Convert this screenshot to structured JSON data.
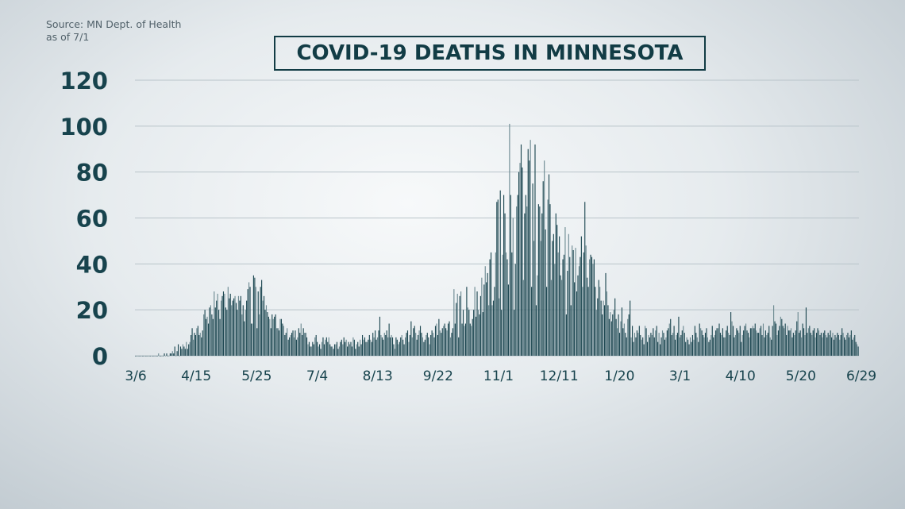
{
  "source": {
    "line1": "Source: MN Dept. of Health",
    "line2": "as of 7/1"
  },
  "colors": {
    "bar_dark": "#1e4852",
    "bar_light": "#6d8a92",
    "grid": "#b9c4ca",
    "text": "#17434d"
  },
  "chart_data": {
    "type": "bar",
    "title": "COVID-19 DEATHS IN MINNESOTA",
    "xlabel": "",
    "ylabel": "",
    "ylim": [
      0,
      120
    ],
    "y_ticks": [
      "0",
      "20",
      "40",
      "60",
      "80",
      "100",
      "120"
    ],
    "x_ticks": [
      "3/6",
      "4/15",
      "5/25",
      "7/4",
      "8/13",
      "9/22",
      "11/1",
      "12/11",
      "1/20",
      "3/1",
      "4/10",
      "5/20",
      "6/29"
    ],
    "x_start": "3/6/2020",
    "x_end": "7/1/2021",
    "grid": true,
    "legend": "none",
    "values": [
      0,
      0,
      0,
      0,
      0,
      0,
      0,
      0,
      0,
      0,
      0,
      0,
      0,
      0,
      0,
      0,
      0,
      0,
      0,
      0,
      1,
      0,
      0,
      0,
      0,
      1,
      0,
      1,
      0,
      0,
      1,
      1,
      2,
      1,
      4,
      0,
      2,
      5,
      0,
      4,
      3,
      5,
      4,
      3,
      6,
      3,
      5,
      6,
      9,
      12,
      7,
      10,
      9,
      12,
      13,
      9,
      10,
      8,
      11,
      18,
      20,
      16,
      17,
      14,
      21,
      22,
      18,
      16,
      28,
      21,
      24,
      27,
      20,
      16,
      24,
      26,
      28,
      27,
      21,
      20,
      30,
      25,
      27,
      22,
      24,
      25,
      26,
      23,
      20,
      26,
      24,
      26,
      18,
      22,
      15,
      20,
      24,
      29,
      32,
      30,
      14,
      14,
      35,
      34,
      30,
      12,
      28,
      18,
      30,
      33,
      24,
      26,
      20,
      22,
      19,
      17,
      16,
      12,
      18,
      16,
      17,
      18,
      12,
      12,
      11,
      16,
      16,
      14,
      13,
      9,
      10,
      12,
      7,
      8,
      9,
      10,
      11,
      8,
      11,
      7,
      8,
      12,
      10,
      14,
      9,
      12,
      10,
      10,
      8,
      5,
      6,
      4,
      4,
      6,
      5,
      8,
      9,
      6,
      4,
      5,
      3,
      6,
      8,
      5,
      7,
      8,
      6,
      8,
      5,
      4,
      4,
      3,
      5,
      5,
      6,
      3,
      4,
      6,
      7,
      5,
      8,
      6,
      7,
      4,
      6,
      5,
      6,
      4,
      8,
      7,
      3,
      5,
      6,
      4,
      7,
      5,
      9,
      7,
      8,
      6,
      6,
      7,
      9,
      7,
      6,
      10,
      8,
      11,
      7,
      8,
      11,
      17,
      9,
      8,
      7,
      10,
      9,
      11,
      8,
      14,
      8,
      9,
      8,
      5,
      3,
      8,
      7,
      5,
      6,
      8,
      9,
      7,
      5,
      8,
      10,
      11,
      6,
      9,
      15,
      8,
      12,
      13,
      10,
      7,
      9,
      11,
      13,
      10,
      8,
      6,
      7,
      9,
      10,
      8,
      5,
      9,
      11,
      10,
      8,
      13,
      14,
      9,
      16,
      11,
      10,
      12,
      13,
      14,
      12,
      11,
      14,
      15,
      8,
      10,
      12,
      29,
      14,
      23,
      27,
      8,
      26,
      28,
      14,
      20,
      13,
      14,
      30,
      21,
      20,
      14,
      13,
      16,
      20,
      30,
      17,
      28,
      20,
      18,
      26,
      34,
      19,
      31,
      39,
      32,
      36,
      22,
      42,
      45,
      22,
      24,
      30,
      45,
      67,
      68,
      25,
      72,
      20,
      44,
      70,
      62,
      45,
      42,
      31,
      101,
      70,
      45,
      60,
      20,
      40,
      65,
      70,
      80,
      84,
      92,
      82,
      33,
      62,
      70,
      65,
      90,
      85,
      94,
      30,
      75,
      50,
      92,
      22,
      35,
      66,
      65,
      50,
      62,
      76,
      85,
      55,
      30,
      68,
      79,
      66,
      33,
      50,
      53,
      40,
      62,
      57,
      45,
      52,
      35,
      33,
      42,
      44,
      56,
      18,
      37,
      53,
      43,
      22,
      48,
      46,
      32,
      47,
      28,
      35,
      39,
      43,
      52,
      30,
      45,
      67,
      48,
      34,
      30,
      42,
      44,
      43,
      40,
      42,
      30,
      20,
      25,
      33,
      30,
      24,
      18,
      24,
      22,
      36,
      28,
      22,
      16,
      19,
      15,
      18,
      20,
      25,
      16,
      12,
      18,
      10,
      15,
      21,
      12,
      14,
      10,
      8,
      16,
      18,
      24,
      8,
      13,
      6,
      10,
      8,
      11,
      10,
      13,
      9,
      7,
      8,
      5,
      13,
      12,
      6,
      9,
      8,
      10,
      9,
      12,
      8,
      11,
      13,
      6,
      10,
      5,
      8,
      11,
      10,
      7,
      8,
      11,
      12,
      14,
      16,
      9,
      10,
      13,
      7,
      9,
      10,
      17,
      8,
      9,
      11,
      13,
      10,
      6,
      8,
      7,
      5,
      8,
      6,
      9,
      7,
      13,
      10,
      8,
      6,
      14,
      12,
      11,
      9,
      8,
      10,
      12,
      8,
      6,
      7,
      9,
      13,
      8,
      9,
      11,
      12,
      12,
      14,
      10,
      9,
      12,
      8,
      8,
      11,
      13,
      10,
      9,
      19,
      15,
      13,
      8,
      9,
      12,
      11,
      10,
      13,
      6,
      9,
      11,
      13,
      14,
      11,
      10,
      8,
      12,
      12,
      13,
      12,
      14,
      11,
      10,
      10,
      12,
      13,
      9,
      14,
      8,
      11,
      9,
      10,
      13,
      8,
      7,
      13,
      22,
      15,
      14,
      9,
      11,
      13,
      17,
      16,
      13,
      12,
      14,
      9,
      13,
      11,
      11,
      12,
      8,
      10,
      9,
      11,
      15,
      19,
      10,
      11,
      8,
      14,
      12,
      9,
      21,
      10,
      12,
      13,
      10,
      9,
      11,
      12,
      8,
      10,
      12,
      11,
      9,
      10,
      8,
      10,
      11,
      9,
      8,
      10,
      9,
      11,
      8,
      10,
      7,
      9,
      8,
      10,
      9,
      7,
      9,
      12,
      10,
      8,
      7,
      9,
      10,
      8,
      9,
      11,
      7,
      8,
      9,
      6,
      5,
      4
    ]
  }
}
